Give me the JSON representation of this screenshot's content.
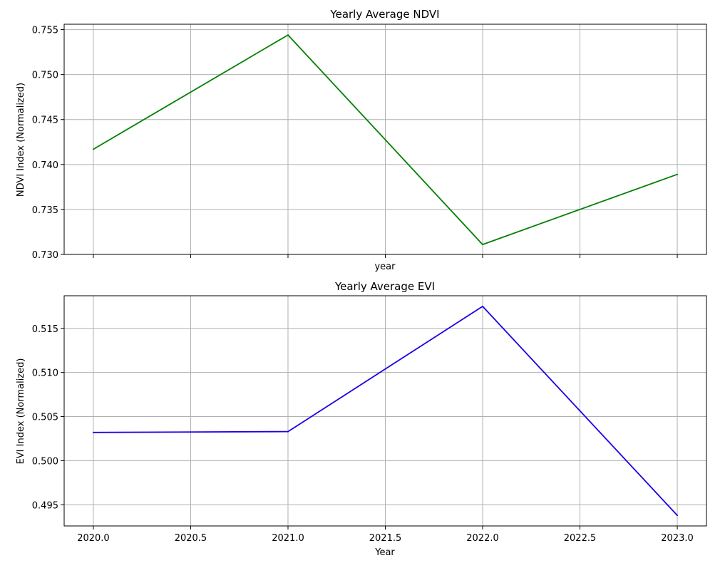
{
  "chart_data": [
    {
      "type": "line",
      "title": "Yearly Average NDVI",
      "xlabel": "year",
      "ylabel": "NDVI Index (Normalized)",
      "x": [
        2020,
        2021,
        2022,
        2023
      ],
      "series": [
        {
          "values": [
            0.7417,
            0.7544,
            0.7311,
            0.7389
          ],
          "color": "#008000"
        }
      ],
      "xlim": [
        2019.85,
        2023.15
      ],
      "ylim": [
        0.73,
        0.7556
      ],
      "xticks": [
        2020.0,
        2020.5,
        2021.0,
        2021.5,
        2022.0,
        2022.5,
        2023.0
      ],
      "xtick_labels_visible": false,
      "yticks": [
        0.73,
        0.735,
        0.74,
        0.745,
        0.75,
        0.755
      ],
      "ytick_labels": [
        "0.730",
        "0.735",
        "0.740",
        "0.745",
        "0.750",
        "0.755"
      ],
      "grid": true,
      "legend": "none"
    },
    {
      "type": "line",
      "title": "Yearly Average EVI",
      "xlabel": "Year",
      "ylabel": "EVI Index (Normalized)",
      "x": [
        2020,
        2021,
        2022,
        2023
      ],
      "series": [
        {
          "values": [
            0.5032,
            0.5033,
            0.5175,
            0.4938
          ],
          "color": "#1a00e6"
        }
      ],
      "xlim": [
        2019.85,
        2023.15
      ],
      "ylim": [
        0.4926,
        0.5187
      ],
      "xticks": [
        2020.0,
        2020.5,
        2021.0,
        2021.5,
        2022.0,
        2022.5,
        2023.0
      ],
      "xtick_labels": [
        "2020.0",
        "2020.5",
        "2021.0",
        "2021.5",
        "2022.0",
        "2022.5",
        "2023.0"
      ],
      "xtick_labels_visible": true,
      "yticks": [
        0.495,
        0.5,
        0.505,
        0.51,
        0.515
      ],
      "ytick_labels": [
        "0.495",
        "0.500",
        "0.505",
        "0.510",
        "0.515"
      ],
      "grid": true,
      "legend": "none"
    }
  ]
}
